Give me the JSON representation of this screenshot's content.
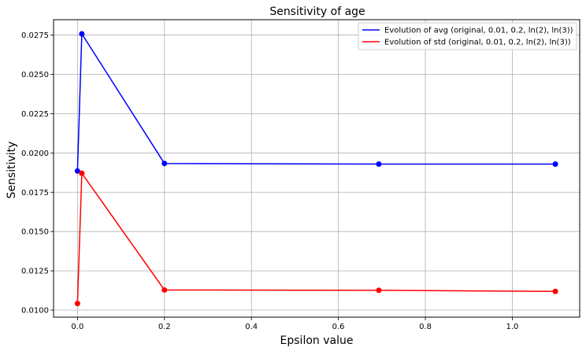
{
  "chart_data": {
    "type": "line",
    "title": "Sensitivity of age",
    "xlabel": "Epsilon value",
    "ylabel": "Sensitivity",
    "x": [
      0,
      0.01,
      0.2,
      0.693,
      1.099
    ],
    "series": [
      {
        "name": "Evolution of avg (original, 0.01, 0.2, ln(2), ln(3))",
        "color": "#0000ff",
        "values": [
          0.01885,
          0.02758,
          0.01933,
          0.01929,
          0.01929
        ]
      },
      {
        "name": "Evolution of std (original, 0.01, 0.2, ln(2), ln(3))",
        "color": "#ff0000",
        "values": [
          0.01042,
          0.01871,
          0.01128,
          0.01126,
          0.01119
        ]
      }
    ],
    "xlim": [
      -0.055,
      1.155
    ],
    "ylim": [
      0.00955,
      0.02848
    ],
    "xticks": [
      0.0,
      0.2,
      0.4,
      0.6,
      0.8,
      1.0
    ],
    "xtick_labels": [
      "0.0",
      "0.2",
      "0.4",
      "0.6",
      "0.8",
      "1.0"
    ],
    "yticks": [
      0.01,
      0.0125,
      0.015,
      0.0175,
      0.02,
      0.0225,
      0.025,
      0.0275
    ],
    "ytick_labels": [
      "0.0100",
      "0.0125",
      "0.0150",
      "0.0175",
      "0.0200",
      "0.0225",
      "0.0250",
      "0.0275"
    ],
    "grid": true,
    "legend_position": "top-right"
  }
}
